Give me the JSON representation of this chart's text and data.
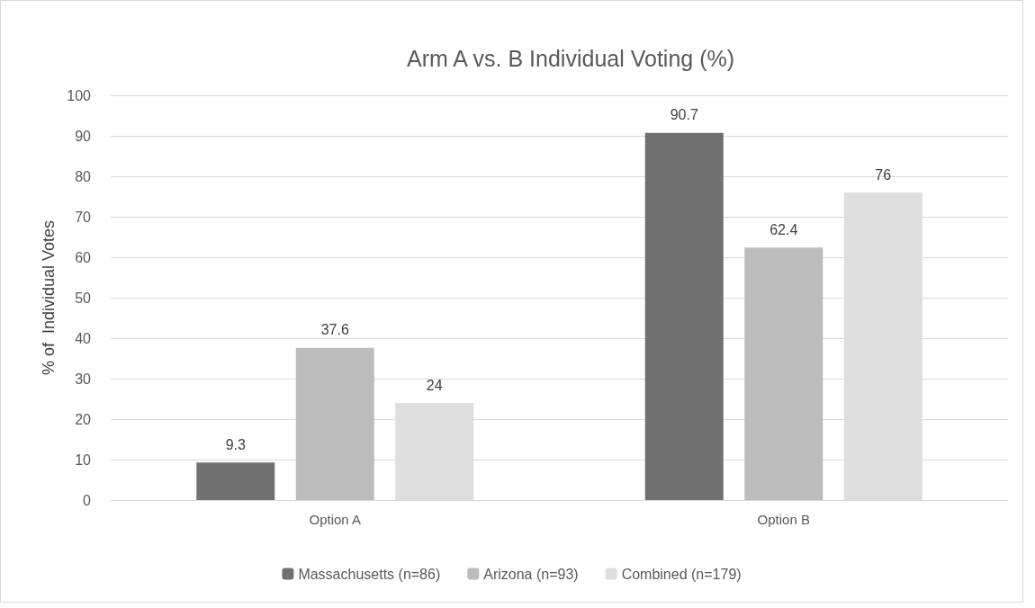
{
  "chart_data": {
    "type": "bar",
    "title": "Arm A vs. B Individual Voting (%)",
    "ylabel": "% of  Individual Votes",
    "categories": [
      "Option A",
      "Option B"
    ],
    "series": [
      {
        "name": "Massachusetts (n=86)",
        "color": "#707070",
        "values": [
          9.3,
          90.7
        ]
      },
      {
        "name": "Arizona (n=93)",
        "color": "#bcbcbc",
        "values": [
          37.6,
          62.4
        ]
      },
      {
        "name": "Combined (n=179)",
        "color": "#dedede",
        "values": [
          24,
          76
        ]
      }
    ],
    "ylim": [
      0,
      100
    ],
    "yticks": [
      0,
      10,
      20,
      30,
      40,
      50,
      60,
      70,
      80,
      90,
      100
    ],
    "grid": "y",
    "legend": "bottom",
    "data_labels": true
  }
}
